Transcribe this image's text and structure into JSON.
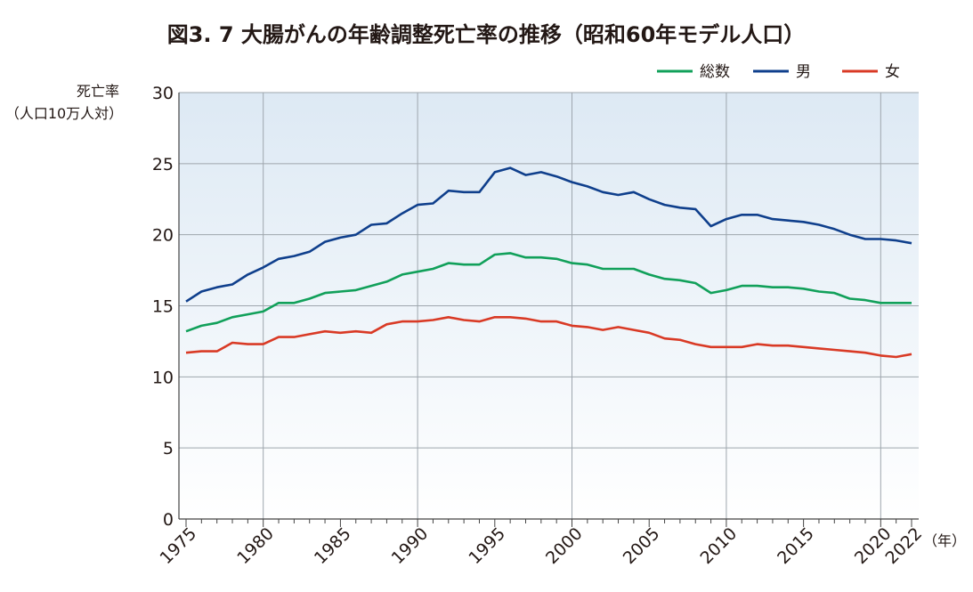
{
  "chart_data": {
    "type": "line",
    "title": "図3. 7 大腸がんの年齢調整死亡率の推移（昭和60年モデル人口）",
    "ylabel_lines": [
      "死亡率",
      "（人口10万人対）"
    ],
    "xunit": "（年）",
    "xlim": [
      1975,
      2022
    ],
    "ylim": [
      0,
      30
    ],
    "yticks": [
      0,
      5,
      10,
      15,
      20,
      25,
      30
    ],
    "xticks": [
      1975,
      1980,
      1985,
      1990,
      1995,
      2000,
      2005,
      2010,
      2015,
      2020,
      2022
    ],
    "grid": true,
    "legend_position": "top-right",
    "x": [
      1975,
      1976,
      1977,
      1978,
      1979,
      1980,
      1981,
      1982,
      1983,
      1984,
      1985,
      1986,
      1987,
      1988,
      1989,
      1990,
      1991,
      1992,
      1993,
      1994,
      1995,
      1996,
      1997,
      1998,
      1999,
      2000,
      2001,
      2002,
      2003,
      2004,
      2005,
      2006,
      2007,
      2008,
      2009,
      2010,
      2011,
      2012,
      2013,
      2014,
      2015,
      2016,
      2017,
      2018,
      2019,
      2020,
      2021,
      2022
    ],
    "series": [
      {
        "name": "総数",
        "color": "#11a05a",
        "values": [
          13.2,
          13.6,
          13.8,
          14.2,
          14.4,
          14.6,
          15.2,
          15.2,
          15.5,
          15.9,
          16.0,
          16.1,
          16.4,
          16.7,
          17.2,
          17.4,
          17.6,
          18.0,
          17.9,
          17.9,
          18.6,
          18.7,
          18.4,
          18.4,
          18.3,
          18.0,
          17.9,
          17.6,
          17.6,
          17.6,
          17.2,
          16.9,
          16.8,
          16.6,
          15.9,
          16.1,
          16.4,
          16.4,
          16.3,
          16.3,
          16.2,
          16.0,
          15.9,
          15.5,
          15.4,
          15.2,
          15.2,
          15.2
        ]
      },
      {
        "name": "男",
        "color": "#0f3f8c",
        "values": [
          15.3,
          16.0,
          16.3,
          16.5,
          17.2,
          17.7,
          18.3,
          18.5,
          18.8,
          19.5,
          19.8,
          20.0,
          20.7,
          20.8,
          21.5,
          22.1,
          22.2,
          23.1,
          23.0,
          23.0,
          24.4,
          24.7,
          24.2,
          24.4,
          24.1,
          23.7,
          23.4,
          23.0,
          22.8,
          23.0,
          22.5,
          22.1,
          21.9,
          21.8,
          20.6,
          21.1,
          21.4,
          21.4,
          21.1,
          21.0,
          20.9,
          20.7,
          20.4,
          20.0,
          19.7,
          19.7,
          19.6,
          19.4
        ]
      },
      {
        "name": "女",
        "color": "#d93a25",
        "values": [
          11.7,
          11.8,
          11.8,
          12.4,
          12.3,
          12.3,
          12.8,
          12.8,
          13.0,
          13.2,
          13.1,
          13.2,
          13.1,
          13.7,
          13.9,
          13.9,
          14.0,
          14.2,
          14.0,
          13.9,
          14.2,
          14.2,
          14.1,
          13.9,
          13.9,
          13.6,
          13.5,
          13.3,
          13.5,
          13.3,
          13.1,
          12.7,
          12.6,
          12.3,
          12.1,
          12.1,
          12.1,
          12.3,
          12.2,
          12.2,
          12.1,
          12.0,
          11.9,
          11.8,
          11.7,
          11.5,
          11.4,
          11.6
        ]
      }
    ]
  }
}
